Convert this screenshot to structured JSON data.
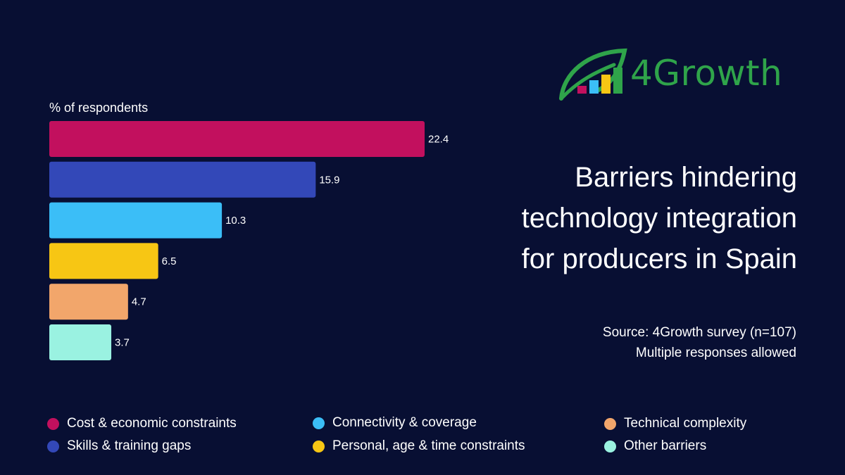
{
  "logo": {
    "text": "4Growth"
  },
  "title": {
    "lines": [
      "Barriers hindering",
      "technology integration",
      "for producers in Spain"
    ]
  },
  "source": {
    "line1": "Source: 4Growth survey (n=107)",
    "line2": "Multiple responses allowed"
  },
  "chart_data": {
    "type": "bar",
    "orientation": "horizontal",
    "ylabel": "% of respondents",
    "categories": [
      "Cost & economic constraints",
      "Skills & training gaps",
      "Connectivity & coverage",
      "Personal, age & time constraints",
      "Technical complexity",
      "Other barriers"
    ],
    "values": [
      22.4,
      15.9,
      10.3,
      6.5,
      4.7,
      3.7
    ],
    "value_labels": [
      "22.4",
      "15.9",
      "10.3",
      "6.5",
      "4.7",
      "3.7"
    ],
    "colors": [
      "#c2105e",
      "#3348b8",
      "#3bbef7",
      "#f7c614",
      "#f2a66b",
      "#9af2e1"
    ],
    "xlim": [
      0,
      22.4
    ],
    "grid": false,
    "legend_position": "bottom"
  },
  "legend": {
    "items": [
      {
        "label": "Cost & economic constraints",
        "color": "#c2105e"
      },
      {
        "label": "Skills & training gaps",
        "color": "#3348b8"
      },
      {
        "label": "Connectivity & coverage",
        "color": "#3bbef7"
      },
      {
        "label": "Personal, age & time constraints",
        "color": "#f7c614"
      },
      {
        "label": "Technical complexity",
        "color": "#f2a66b"
      },
      {
        "label": "Other barriers",
        "color": "#9af2e1"
      }
    ]
  }
}
